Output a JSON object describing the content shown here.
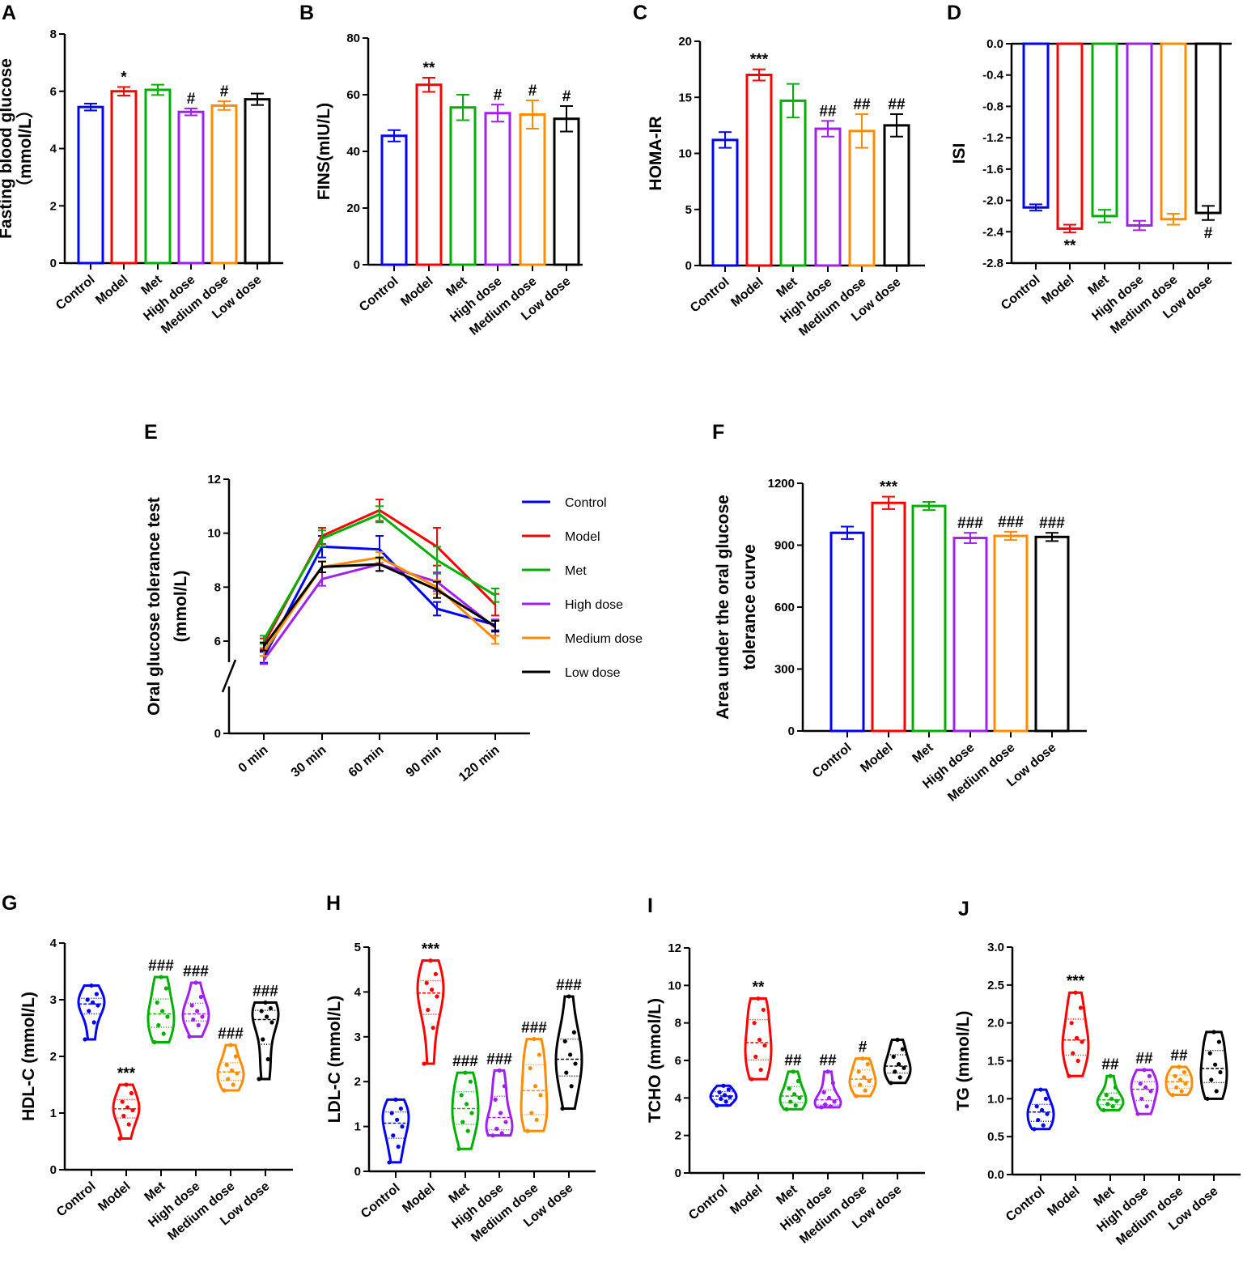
{
  "colors": {
    "Control": "#0000ff",
    "Model": "#ff0000",
    "Met": "#00b000",
    "High dose": "#a020f0",
    "Medium dose": "#ff8c00",
    "Low dose": "#000000"
  },
  "chart_data": [
    {
      "panel": "A",
      "type": "bar",
      "ylabel": [
        "Fasting blood glucose",
        "（mmol/L）"
      ],
      "categories": [
        "Control",
        "Model",
        "Met",
        "High dose",
        "Medium dose",
        "Low dose"
      ],
      "ylim": [
        0,
        8
      ],
      "yticks": [
        0,
        2,
        4,
        6,
        8
      ],
      "ytick_labels": [
        "0",
        "2",
        "4",
        "6",
        "8"
      ],
      "values": [
        5.45,
        6.0,
        6.05,
        5.28,
        5.5,
        5.72
      ],
      "errors": [
        0.12,
        0.15,
        0.18,
        0.12,
        0.15,
        0.2
      ],
      "annotations": [
        "",
        "*",
        "",
        "#",
        "#",
        ""
      ]
    },
    {
      "panel": "B",
      "type": "bar",
      "ylabel": [
        "FINS(mIU/L)"
      ],
      "categories": [
        "Control",
        "Model",
        "Met",
        "High dose",
        "Medium dose",
        "Low dose"
      ],
      "ylim": [
        0,
        80
      ],
      "yticks": [
        0,
        20,
        40,
        60,
        80
      ],
      "ytick_labels": [
        "0",
        "20",
        "40",
        "60",
        "80"
      ],
      "values": [
        45.5,
        63.5,
        55.5,
        53.5,
        53,
        51.5
      ],
      "errors": [
        2,
        2.5,
        4.5,
        3,
        5,
        4.5
      ],
      "annotations": [
        "",
        "**",
        "",
        "#",
        "#",
        "#"
      ]
    },
    {
      "panel": "C",
      "type": "bar",
      "ylabel": [
        "HOMA-IR"
      ],
      "categories": [
        "Control",
        "Model",
        "Met",
        "High dose",
        "Medium dose",
        "Low dose"
      ],
      "ylim": [
        0,
        20
      ],
      "yticks": [
        0,
        5,
        10,
        15,
        20
      ],
      "ytick_labels": [
        "0",
        "5",
        "10",
        "15",
        "20"
      ],
      "values": [
        11.2,
        17.0,
        14.7,
        12.2,
        12.0,
        12.5
      ],
      "errors": [
        0.7,
        0.5,
        1.5,
        0.7,
        1.5,
        1.0
      ],
      "annotations": [
        "",
        "***",
        "",
        "##",
        "##",
        "##"
      ]
    },
    {
      "panel": "D",
      "type": "bar",
      "ylabel": [
        "ISI"
      ],
      "categories": [
        "Control",
        "Model",
        "Met",
        "High dose",
        "Medium dose",
        "Low dose"
      ],
      "ylim": [
        -2.8,
        0
      ],
      "yticks": [
        0,
        -0.4,
        -0.8,
        -1.2,
        -1.6,
        -2.0,
        -2.4,
        -2.8
      ],
      "ytick_labels": [
        "0.0",
        "-0.4",
        "-0.8",
        "-1.2",
        "-1.6",
        "-2.0",
        "-2.4",
        "-2.8"
      ],
      "values": [
        -2.09,
        -2.36,
        -2.2,
        -2.32,
        -2.24,
        -2.16
      ],
      "errors": [
        0.04,
        0.05,
        0.08,
        0.06,
        0.07,
        0.09
      ],
      "annotations": [
        "",
        "**",
        "",
        "",
        "",
        "#"
      ]
    },
    {
      "panel": "E",
      "type": "line",
      "ylabel": [
        "Oral glucose tolerance test",
        "(mmol/L)"
      ],
      "categories": [
        "0 min",
        "30 min",
        "60 min",
        "90 min",
        "120 min"
      ],
      "ylim": [
        0,
        12
      ],
      "yticks": [
        0,
        6,
        8,
        10,
        12
      ],
      "ytick_labels": [
        "0",
        "6",
        "8",
        "10",
        "12"
      ],
      "axis_break": [
        0,
        5
      ],
      "legend": "right",
      "series": [
        {
          "name": "Control",
          "values": [
            5.4,
            9.5,
            9.4,
            7.2,
            6.6
          ],
          "errors": [
            0.2,
            0.4,
            0.5,
            0.25,
            0.2
          ]
        },
        {
          "name": "Model",
          "values": [
            5.9,
            9.9,
            10.85,
            9.5,
            7.35
          ],
          "errors": [
            0.2,
            0.3,
            0.4,
            0.7,
            0.4
          ]
        },
        {
          "name": "Met",
          "values": [
            6.05,
            9.8,
            10.7,
            9.0,
            7.7
          ],
          "errors": [
            0.15,
            0.3,
            0.3,
            0.5,
            0.25
          ]
        },
        {
          "name": "High dose",
          "values": [
            5.3,
            8.3,
            8.85,
            8.2,
            6.5
          ],
          "errors": [
            0.15,
            0.25,
            0.25,
            0.35,
            0.3
          ]
        },
        {
          "name": "Medium dose",
          "values": [
            5.6,
            8.75,
            9.1,
            8.0,
            6.05
          ],
          "errors": [
            0.15,
            0.2,
            0.2,
            0.25,
            0.15
          ]
        },
        {
          "name": "Low dose",
          "values": [
            5.8,
            8.75,
            8.85,
            7.9,
            6.55
          ],
          "errors": [
            0.15,
            0.2,
            0.25,
            0.3,
            0.2
          ]
        }
      ]
    },
    {
      "panel": "F",
      "type": "bar",
      "ylabel": [
        "Area under the oral glucose",
        "tolerance curve"
      ],
      "categories": [
        "Control",
        "Model",
        "Met",
        "High dose",
        "Medium dose",
        "Low dose"
      ],
      "ylim": [
        0,
        1200
      ],
      "yticks": [
        0,
        300,
        600,
        900,
        1200
      ],
      "ytick_labels": [
        "0",
        "300",
        "600",
        "900",
        "1200"
      ],
      "values": [
        960,
        1105,
        1090,
        935,
        945,
        940
      ],
      "errors": [
        30,
        30,
        20,
        25,
        20,
        20
      ],
      "annotations": [
        "",
        "***",
        "",
        "###",
        "###",
        "###"
      ]
    },
    {
      "panel": "G",
      "type": "violin",
      "ylabel": [
        "HDL-C (mmol/L)"
      ],
      "categories": [
        "Control",
        "Model",
        "Met",
        "High dose",
        "Medium dose",
        "Low dose"
      ],
      "ylim": [
        0,
        4
      ],
      "yticks": [
        0,
        1,
        2,
        3,
        4
      ],
      "ytick_labels": [
        "0",
        "1",
        "2",
        "3",
        "4"
      ],
      "annotations": [
        "",
        "***",
        "###",
        "###",
        "###",
        "###"
      ],
      "points": [
        [
          2.3,
          2.6,
          2.8,
          2.9,
          2.95,
          3.0,
          3.1,
          3.25
        ],
        [
          0.55,
          0.8,
          0.95,
          1.05,
          1.1,
          1.2,
          1.35,
          1.5
        ],
        [
          2.25,
          2.4,
          2.55,
          2.7,
          2.8,
          2.95,
          3.2,
          3.4
        ],
        [
          2.35,
          2.55,
          2.65,
          2.7,
          2.8,
          2.9,
          3.05,
          3.3
        ],
        [
          1.4,
          1.5,
          1.6,
          1.7,
          1.75,
          1.85,
          2.0,
          2.2
        ],
        [
          1.6,
          1.95,
          2.3,
          2.6,
          2.7,
          2.8,
          2.85,
          2.95
        ]
      ]
    },
    {
      "panel": "H",
      "type": "violin",
      "ylabel": [
        "LDL-C (mmol/L)"
      ],
      "categories": [
        "Control",
        "Model",
        "Met",
        "High dose",
        "Medium dose",
        "Low dose"
      ],
      "ylim": [
        0,
        5
      ],
      "yticks": [
        0,
        1,
        2,
        3,
        4,
        5
      ],
      "ytick_labels": [
        "0",
        "1",
        "2",
        "3",
        "4",
        "5"
      ],
      "annotations": [
        "",
        "***",
        "###",
        "###",
        "###",
        "###"
      ],
      "points": [
        [
          0.2,
          0.55,
          0.8,
          1.0,
          1.15,
          1.3,
          1.4,
          1.6
        ],
        [
          2.4,
          3.2,
          3.6,
          3.9,
          4.05,
          4.2,
          4.4,
          4.7
        ],
        [
          0.5,
          0.9,
          1.1,
          1.3,
          1.5,
          1.7,
          2.0,
          2.2
        ],
        [
          0.8,
          0.85,
          0.95,
          1.1,
          1.3,
          1.6,
          1.9,
          2.25
        ],
        [
          0.9,
          1.15,
          1.3,
          1.7,
          1.9,
          2.3,
          2.6,
          2.95
        ],
        [
          1.4,
          1.9,
          2.2,
          2.4,
          2.6,
          2.9,
          3.1,
          3.9
        ]
      ]
    },
    {
      "panel": "I",
      "type": "violin",
      "ylabel": [
        "TCHO (mmol/L)"
      ],
      "categories": [
        "Control",
        "Model",
        "Met",
        "High dose",
        "Medium dose",
        "Low dose"
      ],
      "ylim": [
        0,
        12
      ],
      "yticks": [
        0,
        2,
        4,
        6,
        8,
        10,
        12
      ],
      "ytick_labels": [
        "0",
        "2",
        "4",
        "6",
        "8",
        "10",
        "12"
      ],
      "annotations": [
        "",
        "**",
        "##",
        "##",
        "#",
        ""
      ],
      "points": [
        [
          3.6,
          3.8,
          3.95,
          4.05,
          4.15,
          4.3,
          4.45,
          4.65
        ],
        [
          5.0,
          5.5,
          6.2,
          6.8,
          7.1,
          8.0,
          8.7,
          9.3
        ],
        [
          3.4,
          3.6,
          3.8,
          4.0,
          4.2,
          4.5,
          4.9,
          5.4
        ],
        [
          3.5,
          3.55,
          3.65,
          3.8,
          4.0,
          4.3,
          4.8,
          5.4
        ],
        [
          4.1,
          4.4,
          4.7,
          4.9,
          5.1,
          5.4,
          5.8,
          6.1
        ],
        [
          4.8,
          5.1,
          5.4,
          5.6,
          5.8,
          6.2,
          6.6,
          7.1
        ]
      ]
    },
    {
      "panel": "J",
      "type": "violin",
      "ylabel": [
        "TG (mmol/L)"
      ],
      "categories": [
        "Control",
        "Model",
        "Met",
        "High dose",
        "Medium dose",
        "Low dose"
      ],
      "ylim": [
        0,
        3
      ],
      "yticks": [
        0,
        0.5,
        1,
        1.5,
        2,
        2.5,
        3
      ],
      "ytick_labels": [
        "0.0",
        "0.5",
        "1.0",
        "1.5",
        "2.0",
        "2.5",
        "3.0"
      ],
      "annotations": [
        "",
        "***",
        "##",
        "##",
        "##",
        ""
      ],
      "points": [
        [
          0.6,
          0.65,
          0.72,
          0.8,
          0.85,
          0.9,
          1.0,
          1.12
        ],
        [
          1.3,
          1.5,
          1.6,
          1.75,
          1.8,
          2.0,
          2.2,
          2.4
        ],
        [
          0.85,
          0.9,
          0.93,
          0.97,
          1.0,
          1.05,
          1.15,
          1.3
        ],
        [
          0.8,
          0.9,
          1.0,
          1.1,
          1.15,
          1.2,
          1.3,
          1.38
        ],
        [
          1.05,
          1.1,
          1.15,
          1.2,
          1.25,
          1.3,
          1.35,
          1.42
        ],
        [
          1.0,
          1.1,
          1.25,
          1.35,
          1.45,
          1.6,
          1.75,
          1.88
        ]
      ]
    }
  ]
}
